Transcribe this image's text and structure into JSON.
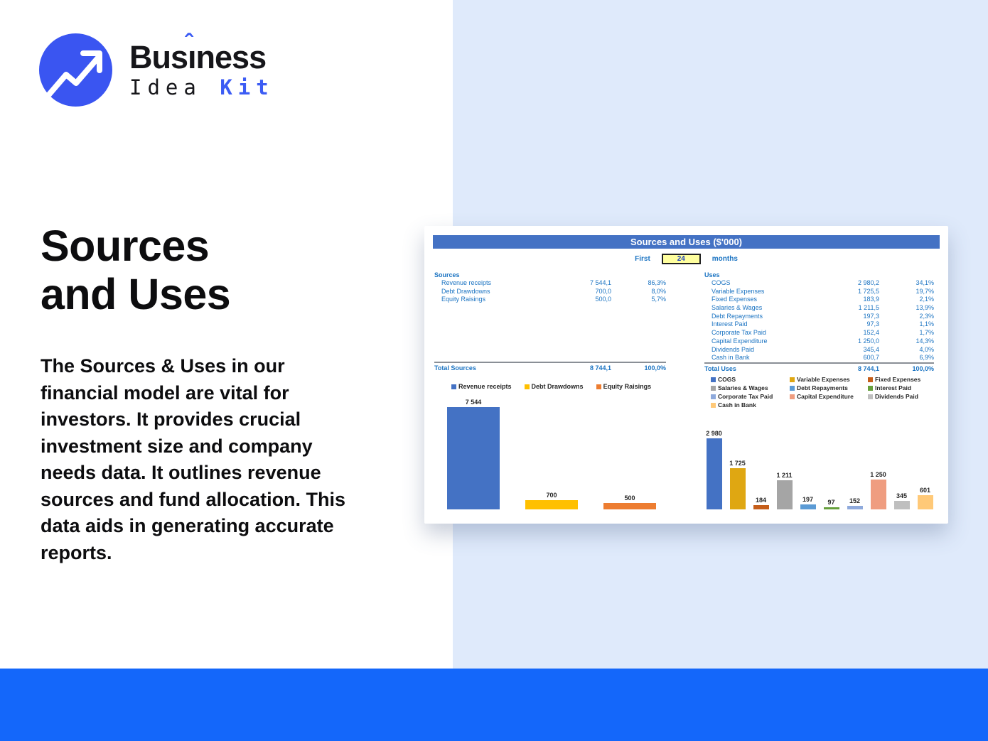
{
  "logo": {
    "brand_pre": "Bus",
    "brand_i": "ı",
    "caret": "ˆ",
    "brand_post": "ness",
    "sub_dark": "Idea ",
    "sub_accent": "Kit",
    "icon": "trend-up-arrow-icon",
    "circle_color": "#3a55f1",
    "accent_color": "#3c5cf4"
  },
  "hero": {
    "title_line1": "Sources",
    "title_line2": "and Uses",
    "description": "The Sources & Uses in our financial model are vital for investors. It provides crucial investment size and company needs data. It outlines revenue sources and fund allocation. This data aids in generating accurate reports."
  },
  "card": {
    "title": "Sources and Uses ($'000)",
    "titlebar_color": "#4472c4",
    "period": {
      "prefix": "First",
      "value": "24",
      "suffix": "months"
    },
    "sources": {
      "header": "Sources",
      "rows": [
        {
          "label": "Revenue receipts",
          "value": "7 544,1",
          "pct": "86,3%"
        },
        {
          "label": "Debt Drawdowns",
          "value": "700,0",
          "pct": "8,0%"
        },
        {
          "label": "Equity Raisings",
          "value": "500,0",
          "pct": "5,7%"
        }
      ],
      "total": {
        "label": "Total Sources",
        "value": "8 744,1",
        "pct": "100,0%"
      }
    },
    "uses": {
      "header": "Uses",
      "rows": [
        {
          "label": "COGS",
          "value": "2 980,2",
          "pct": "34,1%"
        },
        {
          "label": "Variable Expenses",
          "value": "1 725,5",
          "pct": "19,7%"
        },
        {
          "label": "Fixed Expenses",
          "value": "183,9",
          "pct": "2,1%"
        },
        {
          "label": "Salaries & Wages",
          "value": "1 211,5",
          "pct": "13,9%"
        },
        {
          "label": "Debt Repayments",
          "value": "197,3",
          "pct": "2,3%"
        },
        {
          "label": "Interest Paid",
          "value": "97,3",
          "pct": "1,1%"
        },
        {
          "label": "Corporate Tax Paid",
          "value": "152,4",
          "pct": "1,7%"
        },
        {
          "label": "Capital Expenditure",
          "value": "1 250,0",
          "pct": "14,3%"
        },
        {
          "label": "Dividends Paid",
          "value": "345,4",
          "pct": "4,0%"
        },
        {
          "label": "Cash in Bank",
          "value": "600,7",
          "pct": "6,9%"
        }
      ],
      "total": {
        "label": "Total Uses",
        "value": "8 744,1",
        "pct": "100,0%"
      }
    }
  },
  "chart_data": [
    {
      "type": "bar",
      "title": "Sources chart",
      "categories": [
        "Revenue receipts",
        "Debt Drawdowns",
        "Equity Raisings"
      ],
      "values": [
        7544,
        700,
        500
      ],
      "labels": [
        "7 544",
        "700",
        "500"
      ],
      "colors": [
        "#4472c4",
        "#ffc000",
        "#ed7d31"
      ],
      "ylim": [
        0,
        7544
      ],
      "xlabel": "",
      "ylabel": "",
      "grid": false,
      "axes_hidden": true,
      "data_labels": true,
      "legend_position": "top"
    },
    {
      "type": "bar",
      "title": "Uses chart",
      "categories": [
        "COGS",
        "Variable Expenses",
        "Fixed Expenses",
        "Salaries & Wages",
        "Debt Repayments",
        "Interest Paid",
        "Corporate Tax Paid",
        "Capital Expenditure",
        "Dividends Paid",
        "Cash in Bank"
      ],
      "values": [
        2980,
        1725,
        184,
        1211,
        197,
        97,
        152,
        1250,
        345,
        601
      ],
      "labels": [
        "2 980",
        "1 725",
        "184",
        "1 211",
        "197",
        "97",
        "152",
        "1 250",
        "345",
        "601"
      ],
      "colors": [
        "#4472c4",
        "#dfa712",
        "#c55e1a",
        "#a5a5a5",
        "#5b9bd5",
        "#66a03c",
        "#8faadc",
        "#ef9d80",
        "#bfbfbf",
        "#ffc978"
      ],
      "ylim": [
        0,
        2980
      ],
      "xlabel": "",
      "ylabel": "",
      "grid": false,
      "axes_hidden": true,
      "data_labels": true,
      "legend_position": "top"
    }
  ],
  "colors": {
    "panel_blue": "#dfeafb",
    "footer_blue": "#1467fa",
    "table_text_blue": "#1a73c2",
    "input_yellow": "#ffff9e"
  }
}
